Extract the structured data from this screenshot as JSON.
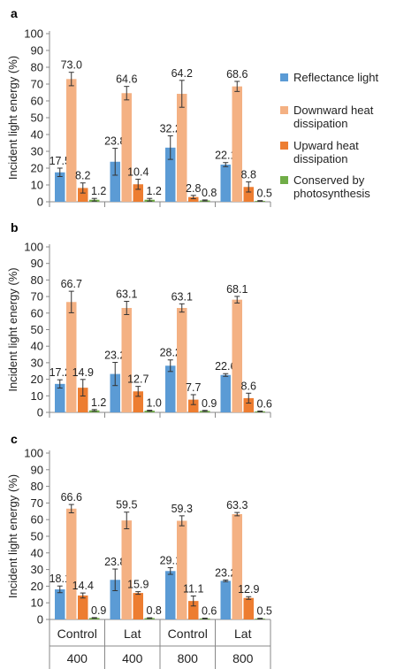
{
  "colors": {
    "reflectance": "#5b9bd5",
    "downward": "#f4b183",
    "upward": "#ed7d31",
    "photosynthesis": "#70ad47"
  },
  "legend": [
    {
      "label_lines": [
        "Reflectance light"
      ],
      "color": "#5b9bd5"
    },
    {
      "label_lines": [
        "Downward heat",
        "dissipation"
      ],
      "color": "#f4b183"
    },
    {
      "label_lines": [
        "Upward heat",
        "dissipation"
      ],
      "color": "#ed7d31"
    },
    {
      "label_lines": [
        "Conserved by",
        "photosynthesis"
      ],
      "color": "#70ad47"
    }
  ],
  "x_axis": {
    "row1": [
      "Control",
      "Lat",
      "Control",
      "Lat"
    ],
    "row2": [
      "400",
      "400",
      "800",
      "800"
    ]
  },
  "chart_data": [
    {
      "type": "bar",
      "panel_label": "a",
      "ylabel": "Incident light energy (%)",
      "ylim": [
        0,
        100
      ],
      "yticks": [
        0,
        10,
        20,
        30,
        40,
        50,
        60,
        70,
        80,
        90,
        100
      ],
      "grid": false,
      "categories": [
        "Control 400",
        "Lat 400",
        "Control 800",
        "Lat 800"
      ],
      "series": [
        {
          "name": "Reflectance light",
          "values": [
            17.5,
            23.8,
            32.2,
            22.1
          ],
          "errors": [
            2.5,
            8.0,
            7.0,
            1.2
          ],
          "labels": [
            "17.5",
            "23.8",
            "32.2",
            "22.1"
          ]
        },
        {
          "name": "Downward heat dissipation",
          "values": [
            73.0,
            64.6,
            64.2,
            68.6
          ],
          "errors": [
            4.0,
            4.0,
            8.0,
            3.0
          ],
          "labels": [
            "73.0",
            "64.6",
            "64.2",
            "68.6"
          ]
        },
        {
          "name": "Upward heat dissipation",
          "values": [
            8.2,
            10.4,
            2.8,
            8.8
          ],
          "errors": [
            3.0,
            3.0,
            1.0,
            3.0
          ],
          "labels": [
            "8.2",
            "10.4",
            "2.8",
            "8.8"
          ]
        },
        {
          "name": "Conserved by photosynthesis",
          "values": [
            1.2,
            1.2,
            0.8,
            0.5
          ],
          "errors": [
            0.8,
            0.8,
            0.3,
            0.2
          ],
          "labels": [
            "1.2",
            "1.2",
            "0.8",
            "0.5"
          ]
        }
      ]
    },
    {
      "type": "bar",
      "panel_label": "b",
      "ylabel": "Incident light energy (%)",
      "ylim": [
        0,
        100
      ],
      "yticks": [
        0,
        10,
        20,
        30,
        40,
        50,
        60,
        70,
        80,
        90,
        100
      ],
      "grid": false,
      "categories": [
        "Control 400",
        "Lat 400",
        "Control 800",
        "Lat 800"
      ],
      "series": [
        {
          "name": "Reflectance light",
          "values": [
            17.2,
            23.2,
            28.2,
            22.6
          ],
          "errors": [
            2.5,
            7.0,
            3.5,
            0.8
          ],
          "labels": [
            "17.2",
            "23.2",
            "28.2",
            "22.6"
          ]
        },
        {
          "name": "Downward heat dissipation",
          "values": [
            66.7,
            63.1,
            63.1,
            68.1
          ],
          "errors": [
            6.5,
            4.0,
            2.5,
            2.0
          ],
          "labels": [
            "66.7",
            "63.1",
            "63.1",
            "68.1"
          ]
        },
        {
          "name": "Upward heat dissipation",
          "values": [
            14.9,
            12.7,
            7.7,
            8.6
          ],
          "errors": [
            5.0,
            3.0,
            3.0,
            3.0
          ],
          "labels": [
            "14.9",
            "12.7",
            "7.7",
            "8.6"
          ]
        },
        {
          "name": "Conserved by photosynthesis",
          "values": [
            1.2,
            1.0,
            0.9,
            0.6
          ],
          "errors": [
            0.5,
            0.3,
            0.3,
            0.2
          ],
          "labels": [
            "1.2",
            "1.0",
            "0.9",
            "0.6"
          ]
        }
      ]
    },
    {
      "type": "bar",
      "panel_label": "c",
      "ylabel": "Incident light energy (%)",
      "ylim": [
        0,
        100
      ],
      "yticks": [
        0,
        10,
        20,
        30,
        40,
        50,
        60,
        70,
        80,
        90,
        100
      ],
      "grid": false,
      "categories": [
        "Control 400",
        "Lat 400",
        "Control 800",
        "Lat 800"
      ],
      "series": [
        {
          "name": "Reflectance light",
          "values": [
            18.1,
            23.8,
            29.1,
            23.2
          ],
          "errors": [
            2.0,
            6.5,
            2.0,
            0.5
          ],
          "labels": [
            "18.1",
            "23.8",
            "29.1",
            "23.2"
          ]
        },
        {
          "name": "Downward heat dissipation",
          "values": [
            66.6,
            59.5,
            59.3,
            63.3
          ],
          "errors": [
            2.5,
            5.0,
            3.0,
            1.0
          ],
          "labels": [
            "66.6",
            "59.5",
            "59.3",
            "63.3"
          ]
        },
        {
          "name": "Upward heat dissipation",
          "values": [
            14.4,
            15.9,
            11.1,
            12.9
          ],
          "errors": [
            1.5,
            0.8,
            3.0,
            0.8
          ],
          "labels": [
            "14.4",
            "15.9",
            "11.1",
            "12.9"
          ]
        },
        {
          "name": "Conserved by photosynthesis",
          "values": [
            0.9,
            0.8,
            0.6,
            0.5
          ],
          "errors": [
            0.2,
            0.2,
            0.2,
            0.2
          ],
          "labels": [
            "0.9",
            "0.8",
            "0.6",
            "0.5"
          ]
        }
      ]
    }
  ]
}
